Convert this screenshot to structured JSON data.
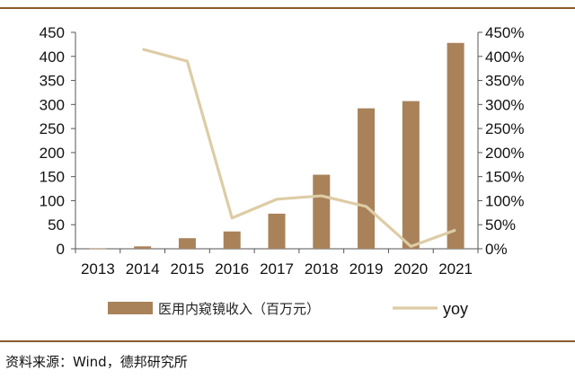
{
  "chart_data": {
    "type": "bar",
    "categories": [
      "2013",
      "2014",
      "2015",
      "2016",
      "2017",
      "2018",
      "2019",
      "2020",
      "2021"
    ],
    "series": [
      {
        "name": "医用内窥镜收入（百万元）",
        "type": "bar",
        "axis": "left",
        "color": "#a9825a",
        "values": [
          1,
          5,
          22,
          36,
          73,
          154,
          292,
          307,
          428
        ]
      },
      {
        "name": "yoy",
        "type": "line",
        "axis": "right",
        "color": "#ddcca5",
        "values": [
          null,
          4.15,
          3.9,
          0.64,
          1.03,
          1.1,
          0.88,
          0.05,
          0.39
        ]
      }
    ],
    "ylim_left": [
      0,
      450
    ],
    "yticks_left": [
      "0",
      "50",
      "100",
      "150",
      "200",
      "250",
      "300",
      "350",
      "400",
      "450"
    ],
    "ylim_right": [
      0,
      4.5
    ],
    "yticks_right": [
      "0%",
      "50%",
      "100%",
      "150%",
      "200%",
      "250%",
      "300%",
      "350%",
      "400%",
      "450%"
    ],
    "grid": false,
    "legend_position": "bottom"
  },
  "source_text": "资料来源：Wind，德邦研究所"
}
